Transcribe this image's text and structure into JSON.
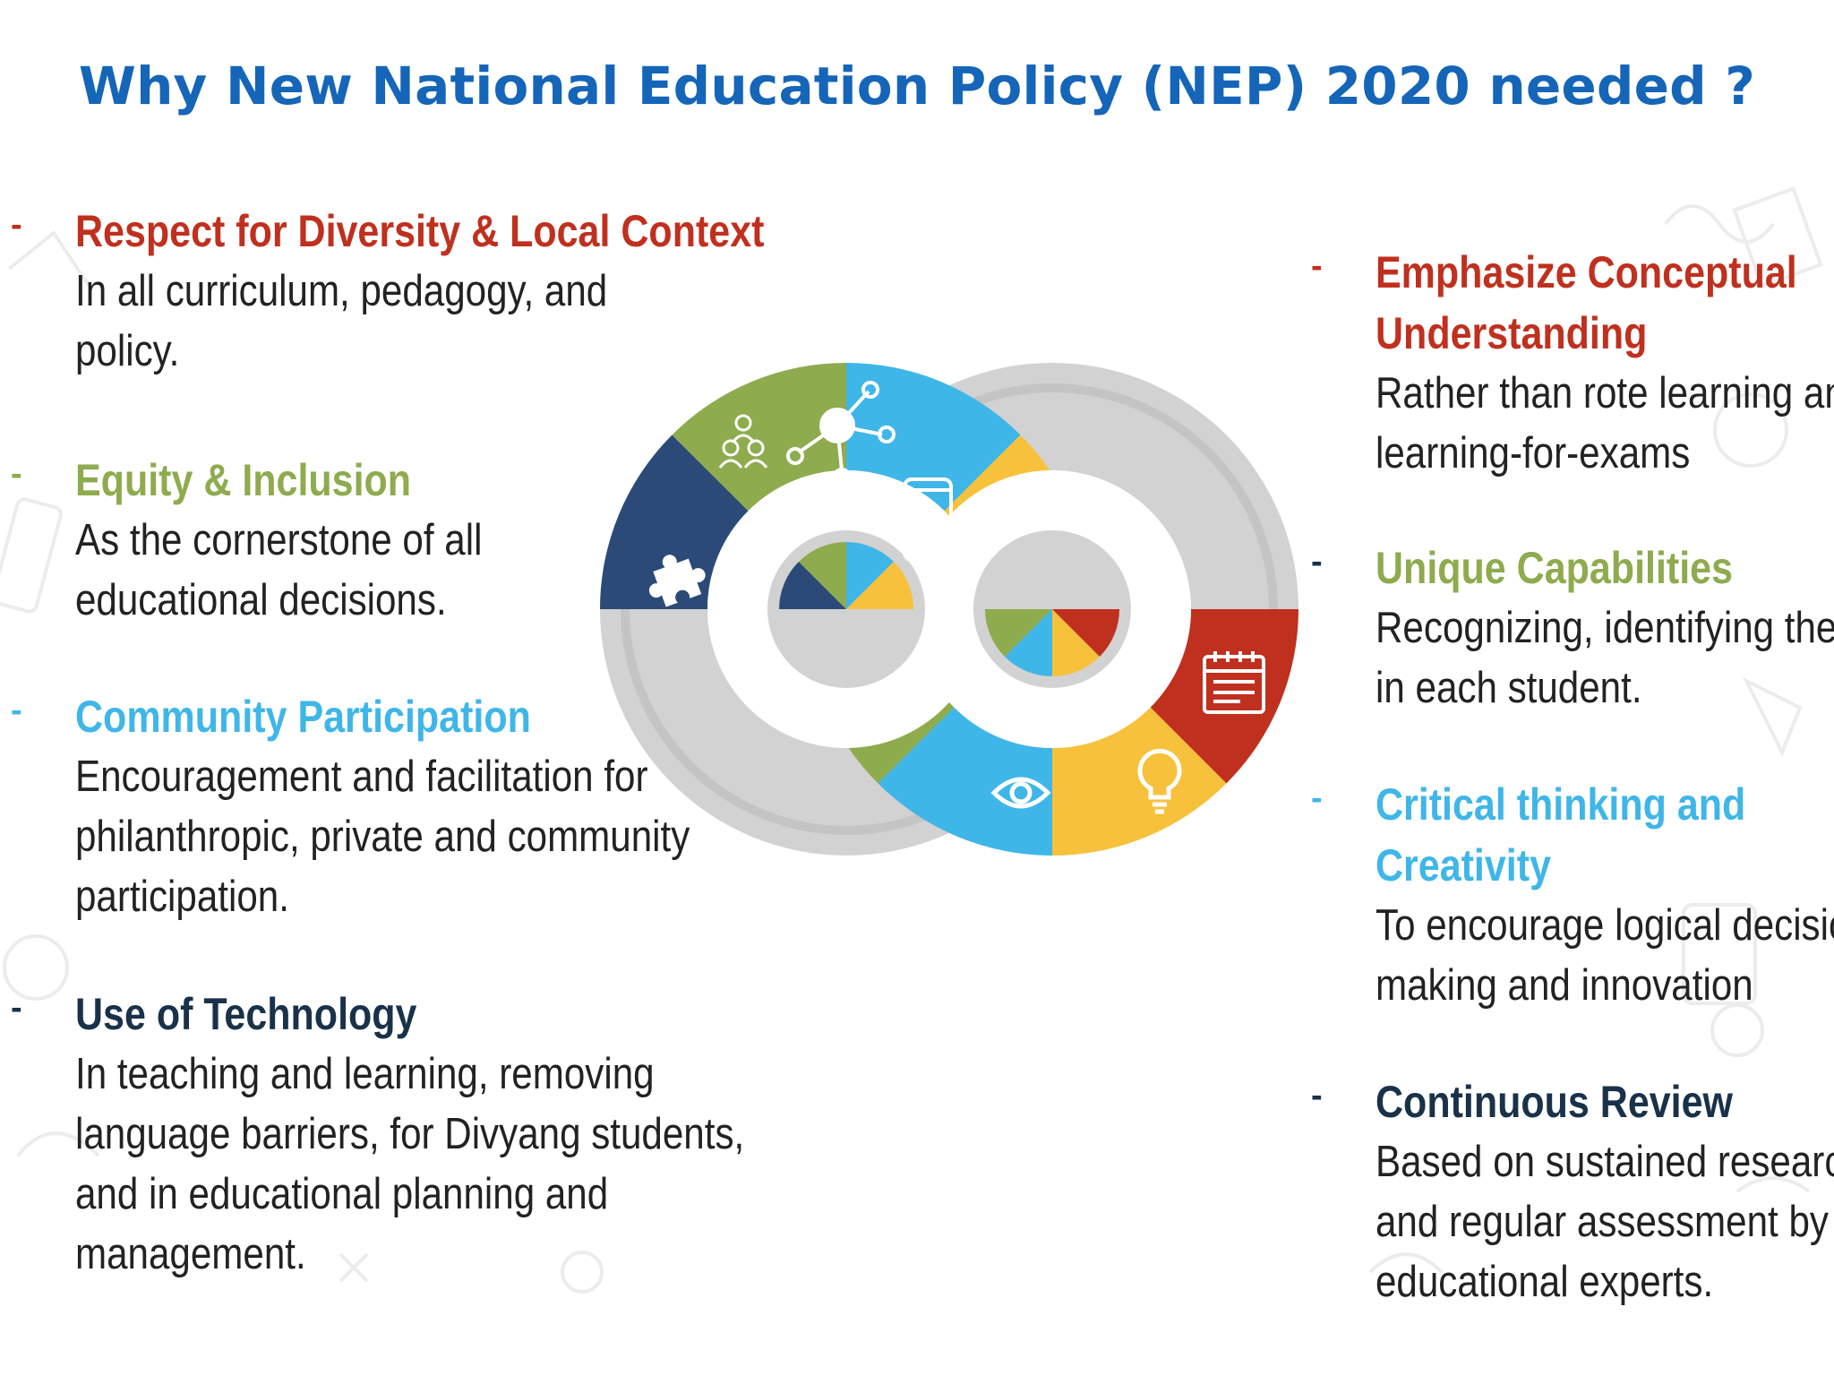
{
  "title": "Why New National Education Policy (NEP) 2020 needed ?",
  "colors": {
    "title": "#1565b8",
    "red": "#c0301e",
    "green": "#8eab4e",
    "sky": "#3fb6e8",
    "navy": "#19324a",
    "yellow": "#f7c13c",
    "dark_blue": "#2b4a78",
    "gray": "#cfcfcf"
  },
  "left_points": [
    {
      "heading": "Respect for Diversity & Local Context",
      "heading_color": "#c0301e",
      "desc_lines": [
        "In all curriculum, pedagogy, and",
        "policy."
      ]
    },
    {
      "heading": "Equity & Inclusion",
      "heading_color": "#8eab4e",
      "desc_lines": [
        "As the cornerstone of all",
        "educational decisions."
      ]
    },
    {
      "heading": "Community Participation",
      "heading_color": "#3fb6e8",
      "desc_lines": [
        "Encouragement and facilitation for",
        "philanthropic, private and community",
        "participation."
      ]
    },
    {
      "heading": "Use of Technology",
      "heading_color": "#19324a",
      "desc_lines": [
        "In teaching and learning, removing",
        "language barriers, for Divyang students,",
        "and in educational planning and",
        "management."
      ]
    }
  ],
  "right_points": [
    {
      "heading_lines": [
        "Emphasize Conceptual",
        "Understanding"
      ],
      "heading_color": "#c0301e",
      "desc_lines": [
        "Rather than rote learning and",
        "learning-for-exams"
      ]
    },
    {
      "heading_lines": [
        "Unique Capabilities"
      ],
      "heading_color": "#8eab4e",
      "desc_lines": [
        "Recognizing, identifying them",
        "in each student."
      ]
    },
    {
      "heading_lines": [
        "Critical thinking and",
        "Creativity"
      ],
      "heading_color": "#3fb6e8",
      "desc_lines": [
        "To encourage logical decision-",
        "making and innovation"
      ]
    },
    {
      "heading_lines": [
        "Continuous Review"
      ],
      "heading_color": "#19324a",
      "desc_lines": [
        "Based on sustained research",
        "and regular assessment by",
        "educational experts."
      ]
    }
  ],
  "dash": "-",
  "icons": [
    "puzzle-icon",
    "people-icon",
    "network-icon",
    "smartphone-icon",
    "pencil-icon",
    "eye-icon",
    "lightbulb-icon",
    "calendar-icon"
  ]
}
